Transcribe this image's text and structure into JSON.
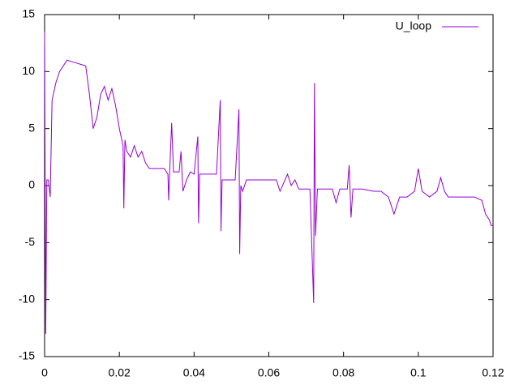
{
  "chart_data": {
    "type": "line",
    "x": [
      0,
      0.0003,
      0.0006,
      0.001,
      0.0015,
      0.002,
      0.003,
      0.004,
      0.005,
      0.006,
      0.008,
      0.01,
      0.011,
      0.012,
      0.013,
      0.014,
      0.015,
      0.016,
      0.017,
      0.018,
      0.019,
      0.02,
      0.021,
      0.0212,
      0.0215,
      0.022,
      0.023,
      0.024,
      0.025,
      0.026,
      0.027,
      0.028,
      0.03,
      0.032,
      0.033,
      0.0332,
      0.0335,
      0.034,
      0.0345,
      0.036,
      0.0365,
      0.037,
      0.038,
      0.039,
      0.04,
      0.041,
      0.0412,
      0.0415,
      0.044,
      0.046,
      0.047,
      0.0472,
      0.0475,
      0.05,
      0.051,
      0.052,
      0.0522,
      0.0525,
      0.053,
      0.054,
      0.056,
      0.058,
      0.06,
      0.062,
      0.063,
      0.065,
      0.066,
      0.067,
      0.068,
      0.07,
      0.071,
      0.072,
      0.0722,
      0.0725,
      0.073,
      0.075,
      0.077,
      0.078,
      0.079,
      0.081,
      0.0815,
      0.082,
      0.0825,
      0.085,
      0.088,
      0.09,
      0.092,
      0.0935,
      0.095,
      0.097,
      0.099,
      0.1,
      0.101,
      0.103,
      0.105,
      0.106,
      0.107,
      0.108,
      0.11,
      0.112,
      0.115,
      0.117,
      0.118,
      0.119,
      0.1195,
      0.12
    ],
    "series": [
      {
        "name": "U_loop",
        "color": "#9400d3",
        "values": [
          13.5,
          -13,
          0.5,
          0.5,
          -1,
          7.5,
          9,
          10,
          10.5,
          11,
          10.8,
          10.6,
          10.5,
          8,
          5,
          6,
          8,
          8.7,
          7.5,
          8.5,
          7,
          5,
          3.5,
          -2,
          4,
          3,
          2.5,
          3.5,
          2.5,
          3,
          2,
          1.5,
          1.5,
          1.5,
          1,
          -1.3,
          1.5,
          5.5,
          1.2,
          1.2,
          3,
          -0.5,
          0.5,
          1.2,
          1,
          4.3,
          -3.3,
          1,
          1,
          1,
          7.5,
          -4,
          0.5,
          0.5,
          0.5,
          6.7,
          -6,
          0,
          -0.5,
          0.5,
          0.5,
          0.5,
          0.5,
          0.5,
          -0.5,
          1,
          0,
          0.5,
          -0.3,
          -0.3,
          -0.3,
          -10.3,
          9,
          -4.4,
          -0.3,
          -0.3,
          -0.3,
          -1.5,
          -0.3,
          -0.3,
          1.8,
          -2.8,
          -0.3,
          -0.3,
          -0.5,
          -0.5,
          -1,
          -2.5,
          -1,
          -1,
          -0.5,
          1.5,
          -0.5,
          -1,
          -0.5,
          0.7,
          -0.5,
          -1,
          -1,
          -1,
          -1,
          -1.3,
          -2.5,
          -3,
          -3.5,
          -3.5
        ]
      }
    ],
    "xlim": [
      0,
      0.12
    ],
    "xticks": [
      0,
      0.02,
      0.04,
      0.06,
      0.08,
      0.1,
      0.12
    ],
    "ylim": [
      -15,
      15
    ],
    "yticks": [
      -15,
      -10,
      -5,
      0,
      5,
      10,
      15
    ]
  }
}
